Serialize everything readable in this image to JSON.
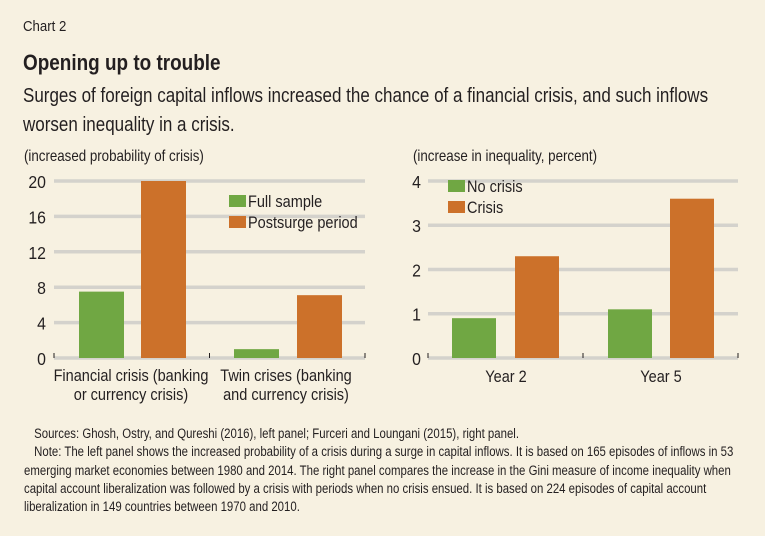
{
  "header": {
    "chart_number": "Chart 2",
    "title": "Opening up to trouble",
    "subtitle": "Surges of foreign capital inflows increased the chance of a financial crisis, and such inflows worsen inequality in a crisis."
  },
  "colors": {
    "green": "#70a743",
    "orange": "#cc712a",
    "grid": "#d4d2cc",
    "background": "#f7f1e1"
  },
  "chart_data": [
    {
      "type": "bar",
      "ylabel": "(increased probability of crisis)",
      "categories": [
        [
          "Financial crisis (banking",
          "or currency crisis)"
        ],
        [
          "Twin crises (banking",
          "and currency crisis)"
        ]
      ],
      "series": [
        {
          "name": "Full sample",
          "color": "#70a743",
          "values": [
            7.5,
            1.0
          ]
        },
        {
          "name": "Postsurge period",
          "color": "#cc712a",
          "values": [
            20.0,
            7.1
          ]
        }
      ],
      "ylim": [
        0,
        20
      ],
      "yticks": [
        0,
        4,
        8,
        12,
        16,
        20
      ],
      "grid": true,
      "legend": "top-right"
    },
    {
      "type": "bar",
      "ylabel": "(increase in inequality, percent)",
      "categories": [
        [
          "Year 2"
        ],
        [
          "Year 5"
        ]
      ],
      "series": [
        {
          "name": "No crisis",
          "color": "#70a743",
          "values": [
            0.9,
            1.1
          ]
        },
        {
          "name": "Crisis",
          "color": "#cc712a",
          "values": [
            2.3,
            3.6
          ]
        }
      ],
      "ylim": [
        0,
        4
      ],
      "yticks": [
        0,
        1,
        2,
        3,
        4
      ],
      "grid": true,
      "legend": "top-left"
    }
  ],
  "notes": {
    "sources": "Sources: Ghosh, Ostry, and Qureshi (2016), left panel; Furceri and Loungani (2015), right panel.",
    "note": "Note: The left panel shows the increased probability of a crisis during a surge in capital inflows. It is based on 165 episodes of inflows in 53 emerging market economies between 1980 and 2014. The right panel compares the increase in the Gini measure of income inequality when capital account liberalization was followed by a crisis with periods when no crisis ensued. It is based on 224 episodes of capital account liberalization in 149 countries between 1970 and 2010."
  }
}
